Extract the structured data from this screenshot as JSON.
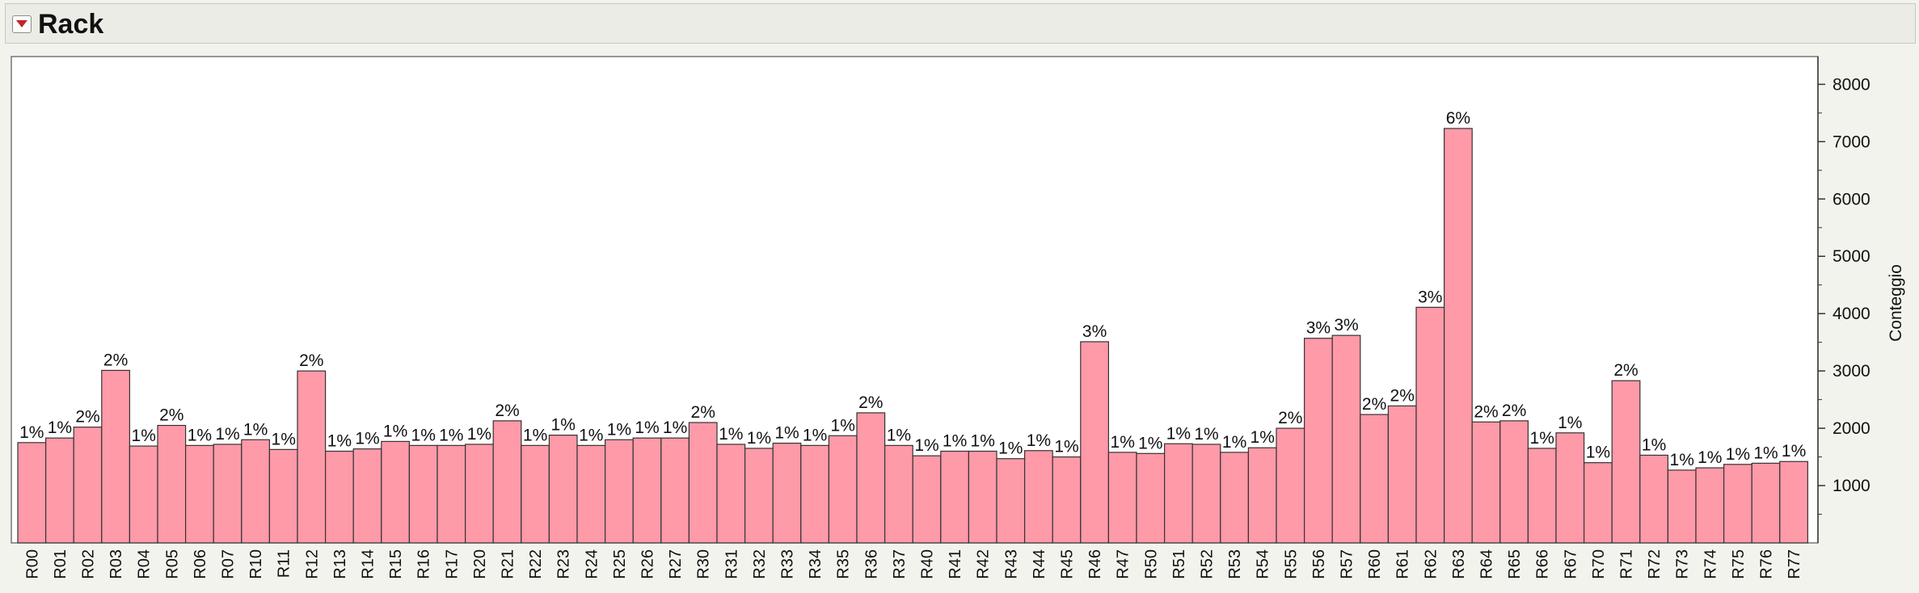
{
  "section": {
    "title": "Rack"
  },
  "chart_data": {
    "type": "bar",
    "ylabel": "Conteggio",
    "ylim": [
      0,
      8400
    ],
    "yticks": [
      1000,
      2000,
      3000,
      4000,
      5000,
      6000,
      7000,
      8000
    ],
    "bar_color": "#ff9aa8",
    "bar_stroke": "#333333",
    "categories": [
      "R00",
      "R01",
      "R02",
      "R03",
      "R04",
      "R05",
      "R06",
      "R07",
      "R10",
      "R11",
      "R12",
      "R13",
      "R14",
      "R15",
      "R16",
      "R17",
      "R20",
      "R21",
      "R22",
      "R23",
      "R24",
      "R25",
      "R26",
      "R27",
      "R30",
      "R31",
      "R32",
      "R33",
      "R34",
      "R35",
      "R36",
      "R37",
      "R40",
      "R41",
      "R42",
      "R43",
      "R44",
      "R45",
      "R46",
      "R47",
      "R50",
      "R51",
      "R52",
      "R53",
      "R54",
      "R55",
      "R56",
      "R57",
      "R60",
      "R61",
      "R62",
      "R63",
      "R64",
      "R65",
      "R66",
      "R67",
      "R70",
      "R71",
      "R72",
      "R73",
      "R74",
      "R75",
      "R76",
      "R77"
    ],
    "values": [
      1750,
      1830,
      2020,
      3010,
      1690,
      2050,
      1700,
      1720,
      1800,
      1630,
      3000,
      1600,
      1640,
      1770,
      1700,
      1700,
      1720,
      2130,
      1700,
      1880,
      1700,
      1800,
      1830,
      1830,
      2100,
      1720,
      1650,
      1740,
      1700,
      1870,
      2270,
      1700,
      1520,
      1600,
      1600,
      1470,
      1610,
      1500,
      3510,
      1580,
      1560,
      1730,
      1720,
      1580,
      1660,
      2000,
      3570,
      3620,
      2240,
      2390,
      4110,
      7230,
      2110,
      2130,
      1650,
      1920,
      1400,
      2830,
      1530,
      1270,
      1310,
      1370,
      1390,
      1420
    ],
    "labels": [
      "1%",
      "1%",
      "2%",
      "2%",
      "1%",
      "2%",
      "1%",
      "1%",
      "1%",
      "1%",
      "2%",
      "1%",
      "1%",
      "1%",
      "1%",
      "1%",
      "1%",
      "2%",
      "1%",
      "1%",
      "1%",
      "1%",
      "1%",
      "1%",
      "2%",
      "1%",
      "1%",
      "1%",
      "1%",
      "1%",
      "2%",
      "1%",
      "1%",
      "1%",
      "1%",
      "1%",
      "1%",
      "1%",
      "3%",
      "1%",
      "1%",
      "1%",
      "1%",
      "1%",
      "1%",
      "2%",
      "3%",
      "3%",
      "2%",
      "2%",
      "3%",
      "6%",
      "2%",
      "2%",
      "1%",
      "1%",
      "1%",
      "2%",
      "1%",
      "1%",
      "1%",
      "1%",
      "1%",
      "1%"
    ]
  }
}
